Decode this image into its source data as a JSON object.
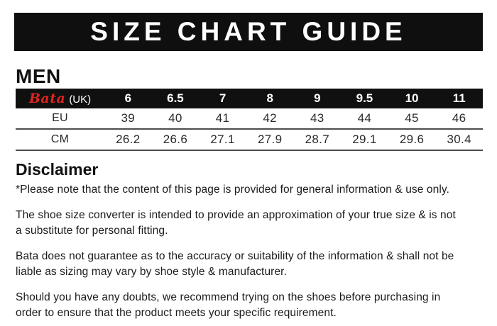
{
  "title_banner": "SIZE CHART GUIDE",
  "gender_heading": "MEN",
  "colors": {
    "banner_bg": "#0f0f0f",
    "brand_red": "#e0231d",
    "divider_gray": "#4d4d4d"
  },
  "chart_data": {
    "type": "table",
    "title": "MEN shoe size conversion",
    "columns": [
      "Bata (UK)",
      "6",
      "6.5",
      "7",
      "8",
      "9",
      "9.5",
      "10",
      "11"
    ],
    "rows": [
      [
        "EU",
        "39",
        "40",
        "41",
        "42",
        "43",
        "44",
        "45",
        "46"
      ],
      [
        "CM",
        "26.2",
        "26.6",
        "27.1",
        "27.9",
        "28.7",
        "29.1",
        "29.6",
        "30.4"
      ]
    ]
  },
  "size_table": {
    "brand": "Bata",
    "brand_suffix": "(UK)",
    "uk_sizes": [
      "6",
      "6.5",
      "7",
      "8",
      "9",
      "9.5",
      "10",
      "11"
    ],
    "eu_label": "EU",
    "eu_values": [
      "39",
      "40",
      "41",
      "42",
      "43",
      "44",
      "45",
      "46"
    ],
    "cm_label": "CM",
    "cm_values": [
      "26.2",
      "26.6",
      "27.1",
      "27.9",
      "28.7",
      "29.1",
      "29.6",
      "30.4"
    ]
  },
  "disclaimer": {
    "heading": "Disclaimer",
    "paragraphs": [
      "*Please note that the content of this page is provided for general information & use only.",
      "The shoe size converter is intended to provide an approximation of your true size & is not\na substitute for personal fitting.",
      "Bata does not guarantee as to the accuracy or suitability of the information & shall not be\nliable as sizing may vary by shoe style & manufacturer.",
      "Should you have any doubts, we recommend trying on the shoes before purchasing in\norder to ensure that the product meets your specific requirement."
    ]
  }
}
